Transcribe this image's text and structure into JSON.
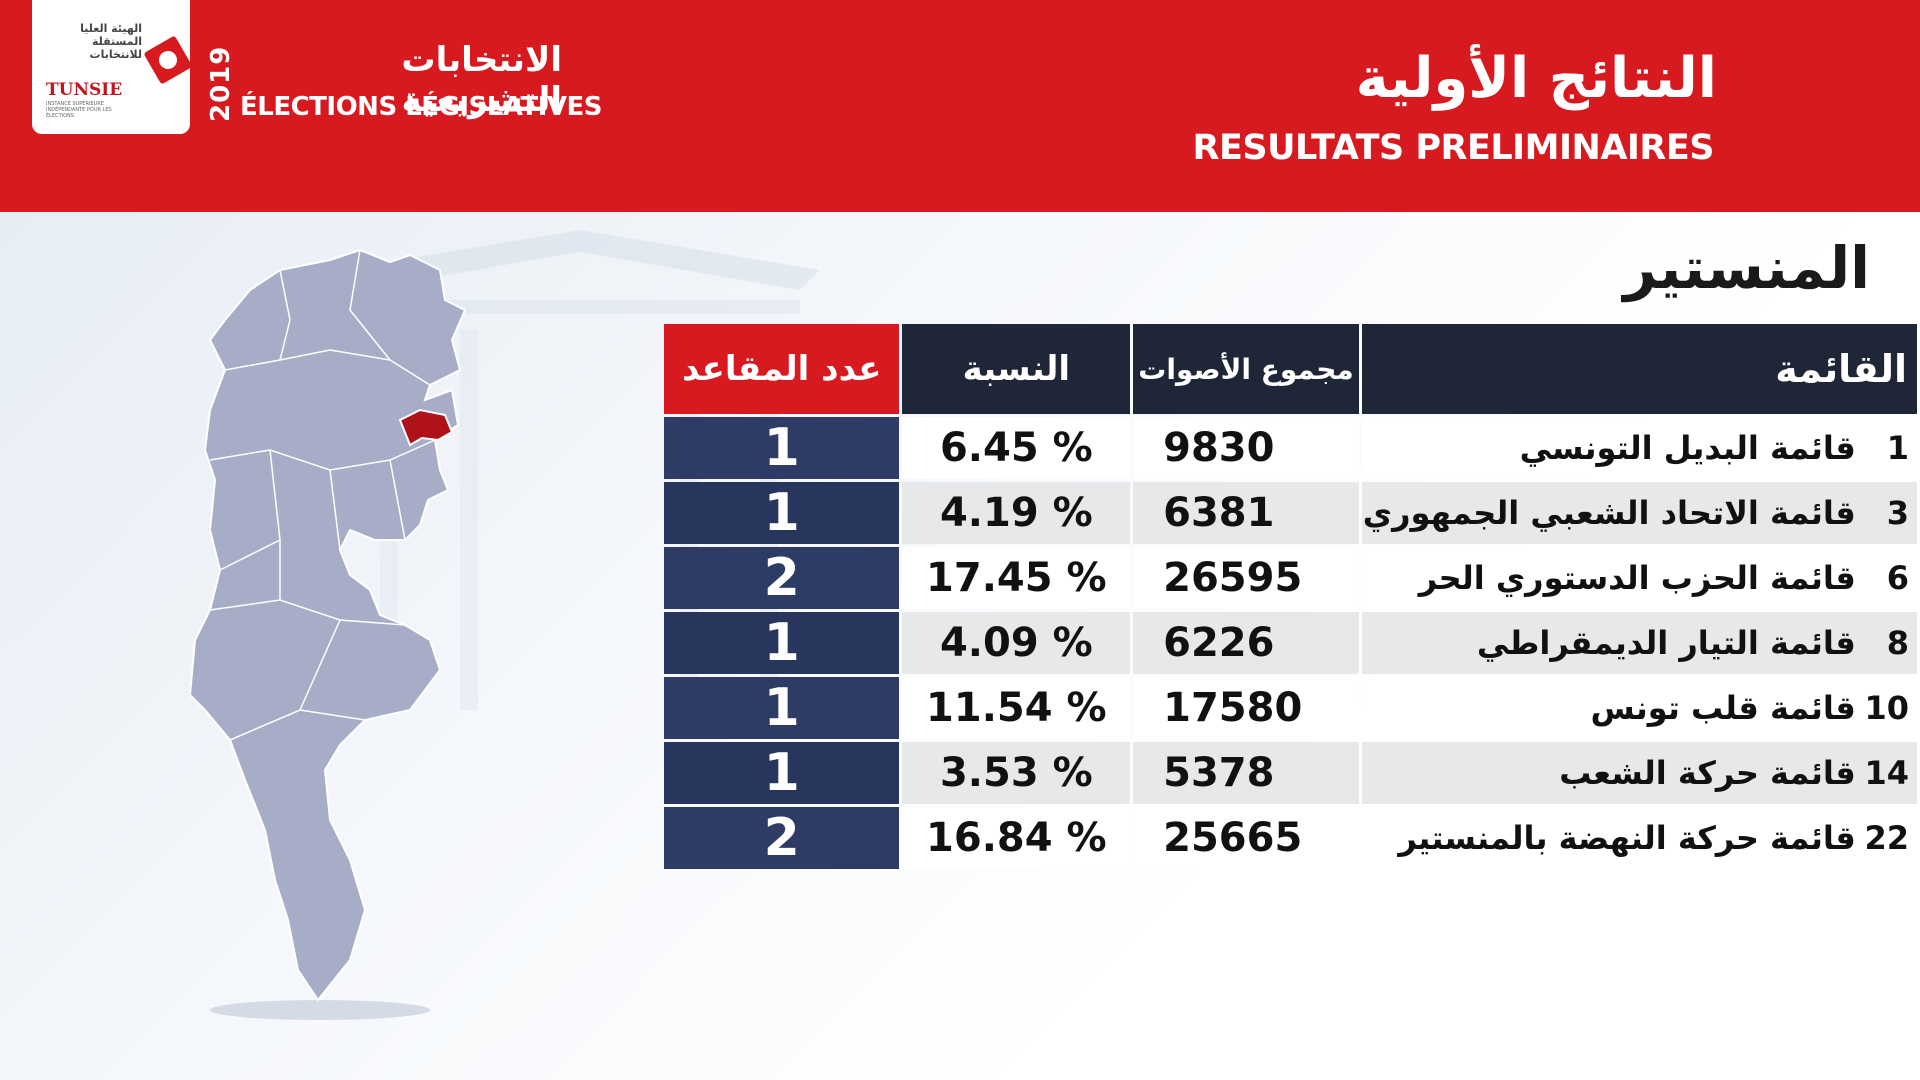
{
  "header": {
    "logo_text": "الهيئة العليا المستقلة للانتخابات",
    "logo_brand": "TUNSIE",
    "logo_sub": "INSTANCE SUPÉRIEURE INDÉPENDANTE POUR LES ÉLECTIONS",
    "year": "2019",
    "elections_ar": "الانتخابات التشريعية",
    "elections_fr": "ÉLECTIONS LÉGISLATIVES",
    "title_ar": "النتائج الأولية",
    "title_fr": "RESULTATS PRELIMINAIRES"
  },
  "region": "المنستير",
  "table": {
    "headers": {
      "list": "القائمة",
      "votes": "مجموع الأصوات",
      "pct": "النسبة",
      "seats": "عدد المقاعد"
    },
    "rows": [
      {
        "num": "1",
        "name": "قائمة البديل التونسي",
        "votes": "9830",
        "pct": "6.45 %",
        "seats": "1"
      },
      {
        "num": "3",
        "name": "قائمة الاتحاد الشعبي الجمهوري",
        "votes": "6381",
        "pct": "4.19 %",
        "seats": "1"
      },
      {
        "num": "6",
        "name": "قائمة الحزب الدستوري الحر",
        "votes": "26595",
        "pct": "17.45 %",
        "seats": "2"
      },
      {
        "num": "8",
        "name": "قائمة التيار الديمقراطي",
        "votes": "6226",
        "pct": "4.09 %",
        "seats": "1"
      },
      {
        "num": "10",
        "name": "قائمة قلب تونس",
        "votes": "17580",
        "pct": "11.54 %",
        "seats": "1"
      },
      {
        "num": "14",
        "name": "قائمة حركة الشعب",
        "votes": "5378",
        "pct": "3.53 %",
        "seats": "1"
      },
      {
        "num": "22",
        "name": "قائمة حركة النهضة بالمنستير",
        "votes": "25665",
        "pct": "16.84 %",
        "seats": "2"
      }
    ]
  },
  "colors": {
    "brand_red": "#d71920",
    "header_dark": "#1f2637",
    "seats_blue": "#2e3c65",
    "map_gray": "#a7adc6",
    "highlight_region": "#b0121a"
  }
}
